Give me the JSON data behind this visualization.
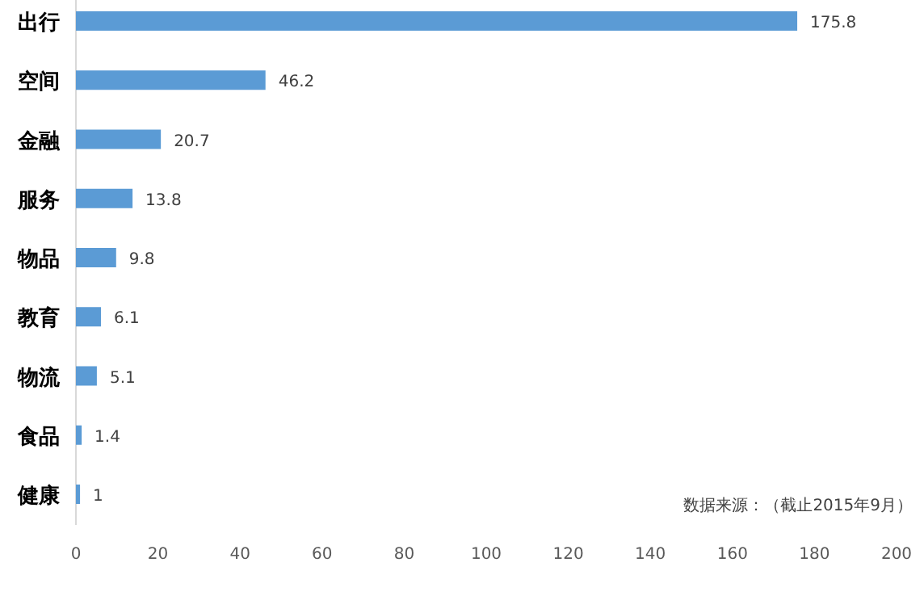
{
  "chart_data": {
    "type": "bar",
    "orientation": "horizontal",
    "categories": [
      "出行",
      "空间",
      "金融",
      "服务",
      "物品",
      "教育",
      "物流",
      "食品",
      "健康"
    ],
    "values": [
      175.8,
      46.2,
      20.7,
      13.8,
      9.8,
      6.1,
      5.1,
      1.4,
      1
    ],
    "color": "#5b9bd5",
    "xlim": [
      0,
      200
    ],
    "xticks": [
      0,
      20,
      40,
      60,
      80,
      100,
      120,
      140,
      160,
      180,
      200
    ],
    "data_labels": true,
    "annotations": [
      "数据来源：（截止2015年9月）"
    ]
  }
}
